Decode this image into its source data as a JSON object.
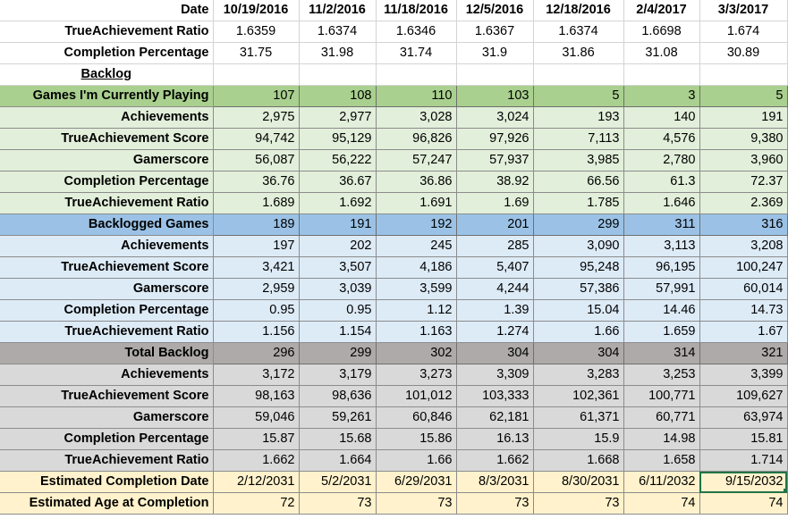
{
  "dates": [
    "10/19/2016",
    "11/2/2016",
    "11/18/2016",
    "12/5/2016",
    "12/18/2016",
    "2/4/2017",
    "3/3/2017"
  ],
  "rows": [
    {
      "label": "Date",
      "values": [
        "10/19/2016",
        "11/2/2016",
        "11/18/2016",
        "12/5/2016",
        "12/18/2016",
        "2/4/2017",
        "3/3/2017"
      ],
      "style": "hdr"
    },
    {
      "label": "TrueAchievement Ratio",
      "values": [
        "1.6359",
        "1.6374",
        "1.6346",
        "1.6367",
        "1.6374",
        "1.6698",
        "1.674"
      ],
      "style": "top"
    },
    {
      "label": "Completion Percentage",
      "values": [
        "31.75",
        "31.98",
        "31.74",
        "31.9",
        "31.86",
        "31.08",
        "30.89"
      ],
      "style": "top"
    },
    {
      "label": "Backlog",
      "values": [
        "",
        "",
        "",
        "",
        "",
        "",
        ""
      ],
      "style": "backlog"
    },
    {
      "label": "Games I'm Currently Playing",
      "values": [
        "107",
        "108",
        "110",
        "103",
        "5",
        "3",
        "5"
      ],
      "style": "sec-curr"
    },
    {
      "label": "Achievements",
      "values": [
        "2,975",
        "2,977",
        "3,028",
        "3,024",
        "193",
        "140",
        "191"
      ],
      "style": "curr"
    },
    {
      "label": "TrueAchievement Score",
      "values": [
        "94,742",
        "95,129",
        "96,826",
        "97,926",
        "7,113",
        "4,576",
        "9,380"
      ],
      "style": "curr"
    },
    {
      "label": "Gamerscore",
      "values": [
        "56,087",
        "56,222",
        "57,247",
        "57,937",
        "3,985",
        "2,780",
        "3,960"
      ],
      "style": "curr"
    },
    {
      "label": "Completion Percentage",
      "values": [
        "36.76",
        "36.67",
        "36.86",
        "38.92",
        "66.56",
        "61.3",
        "72.37"
      ],
      "style": "curr"
    },
    {
      "label": "TrueAchievement Ratio",
      "values": [
        "1.689",
        "1.692",
        "1.691",
        "1.69",
        "1.785",
        "1.646",
        "2.369"
      ],
      "style": "curr"
    },
    {
      "label": "Backlogged Games",
      "values": [
        "189",
        "191",
        "192",
        "201",
        "299",
        "311",
        "316"
      ],
      "style": "sec-back"
    },
    {
      "label": "Achievements",
      "values": [
        "197",
        "202",
        "245",
        "285",
        "3,090",
        "3,113",
        "3,208"
      ],
      "style": "back"
    },
    {
      "label": "TrueAchievement Score",
      "values": [
        "3,421",
        "3,507",
        "4,186",
        "5,407",
        "95,248",
        "96,195",
        "100,247"
      ],
      "style": "back"
    },
    {
      "label": "Gamerscore",
      "values": [
        "2,959",
        "3,039",
        "3,599",
        "4,244",
        "57,386",
        "57,991",
        "60,014"
      ],
      "style": "back"
    },
    {
      "label": "Completion Percentage",
      "values": [
        "0.95",
        "0.95",
        "1.12",
        "1.39",
        "15.04",
        "14.46",
        "14.73"
      ],
      "style": "back"
    },
    {
      "label": "TrueAchievement Ratio",
      "values": [
        "1.156",
        "1.154",
        "1.163",
        "1.274",
        "1.66",
        "1.659",
        "1.67"
      ],
      "style": "back"
    },
    {
      "label": "Total Backlog",
      "values": [
        "296",
        "299",
        "302",
        "304",
        "304",
        "314",
        "321"
      ],
      "style": "sec-total"
    },
    {
      "label": "Achievements",
      "values": [
        "3,172",
        "3,179",
        "3,273",
        "3,309",
        "3,283",
        "3,253",
        "3,399"
      ],
      "style": "total"
    },
    {
      "label": "TrueAchievement Score",
      "values": [
        "98,163",
        "98,636",
        "101,012",
        "103,333",
        "102,361",
        "100,771",
        "109,627"
      ],
      "style": "total"
    },
    {
      "label": "Gamerscore",
      "values": [
        "59,046",
        "59,261",
        "60,846",
        "62,181",
        "61,371",
        "60,771",
        "63,974"
      ],
      "style": "total"
    },
    {
      "label": "Completion Percentage",
      "values": [
        "15.87",
        "15.68",
        "15.86",
        "16.13",
        "15.9",
        "14.98",
        "15.81"
      ],
      "style": "total"
    },
    {
      "label": "TrueAchievement Ratio",
      "values": [
        "1.662",
        "1.664",
        "1.66",
        "1.662",
        "1.668",
        "1.658",
        "1.714"
      ],
      "style": "total"
    },
    {
      "label": "Estimated Completion Date",
      "values": [
        "2/12/2031",
        "5/2/2031",
        "6/29/2031",
        "8/3/2031",
        "8/30/2031",
        "6/11/2032",
        "9/15/2032"
      ],
      "style": "est"
    },
    {
      "label": "Estimated Age at Completion",
      "values": [
        "72",
        "73",
        "73",
        "73",
        "73",
        "74",
        "74"
      ],
      "style": "est"
    }
  ],
  "selected_cell": {
    "row": 22,
    "col": 6
  },
  "colors": {
    "current_header": "#a9d08e",
    "current_rows": "#e2efda",
    "backlog_header": "#9bc2e6",
    "backlog_rows": "#ddebf7",
    "total_header": "#aeaaaa",
    "total_rows": "#d9d9d9",
    "estimate_rows": "#fff2cc",
    "selection": "#217346"
  }
}
